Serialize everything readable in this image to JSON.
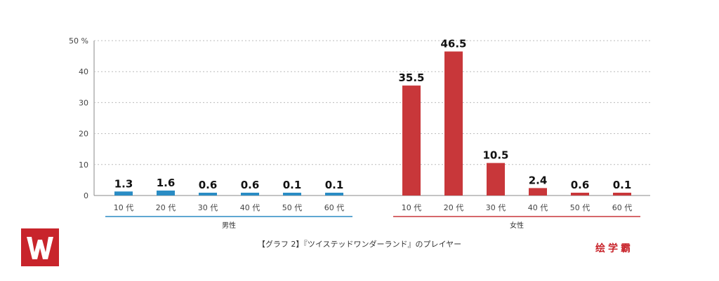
{
  "chart_data": {
    "type": "bar",
    "title": "",
    "ylabel": "",
    "y_unit": "%",
    "ylim": [
      0,
      50
    ],
    "y_ticks": [
      0,
      10,
      20,
      30,
      40,
      50
    ],
    "grid": true,
    "groups": [
      {
        "name": "男性",
        "color": "#2a8cc4",
        "categories": [
          "10 代",
          "20 代",
          "30 代",
          "40 代",
          "50 代",
          "60 代"
        ],
        "values": [
          1.3,
          1.6,
          0.6,
          0.6,
          0.1,
          0.1
        ],
        "value_labels": [
          "1.3",
          "1.6",
          "0.6",
          "0.6",
          "0.1",
          "0.1"
        ]
      },
      {
        "name": "女性",
        "color": "#c8373a",
        "categories": [
          "10 代",
          "20 代",
          "30 代",
          "40 代",
          "50 代",
          "60 代"
        ],
        "values": [
          35.5,
          46.5,
          10.5,
          2.4,
          0.6,
          0.1
        ],
        "value_labels": [
          "35.5",
          "46.5",
          "10.5",
          "2.4",
          "0.6",
          "0.1"
        ]
      }
    ]
  },
  "caption": "【グラフ 2】『ツイステッドワンダーランド』のプレイヤー",
  "brand": "绘学霸",
  "logo": {
    "icon": "w-logo-icon",
    "color": "#c8242b"
  }
}
